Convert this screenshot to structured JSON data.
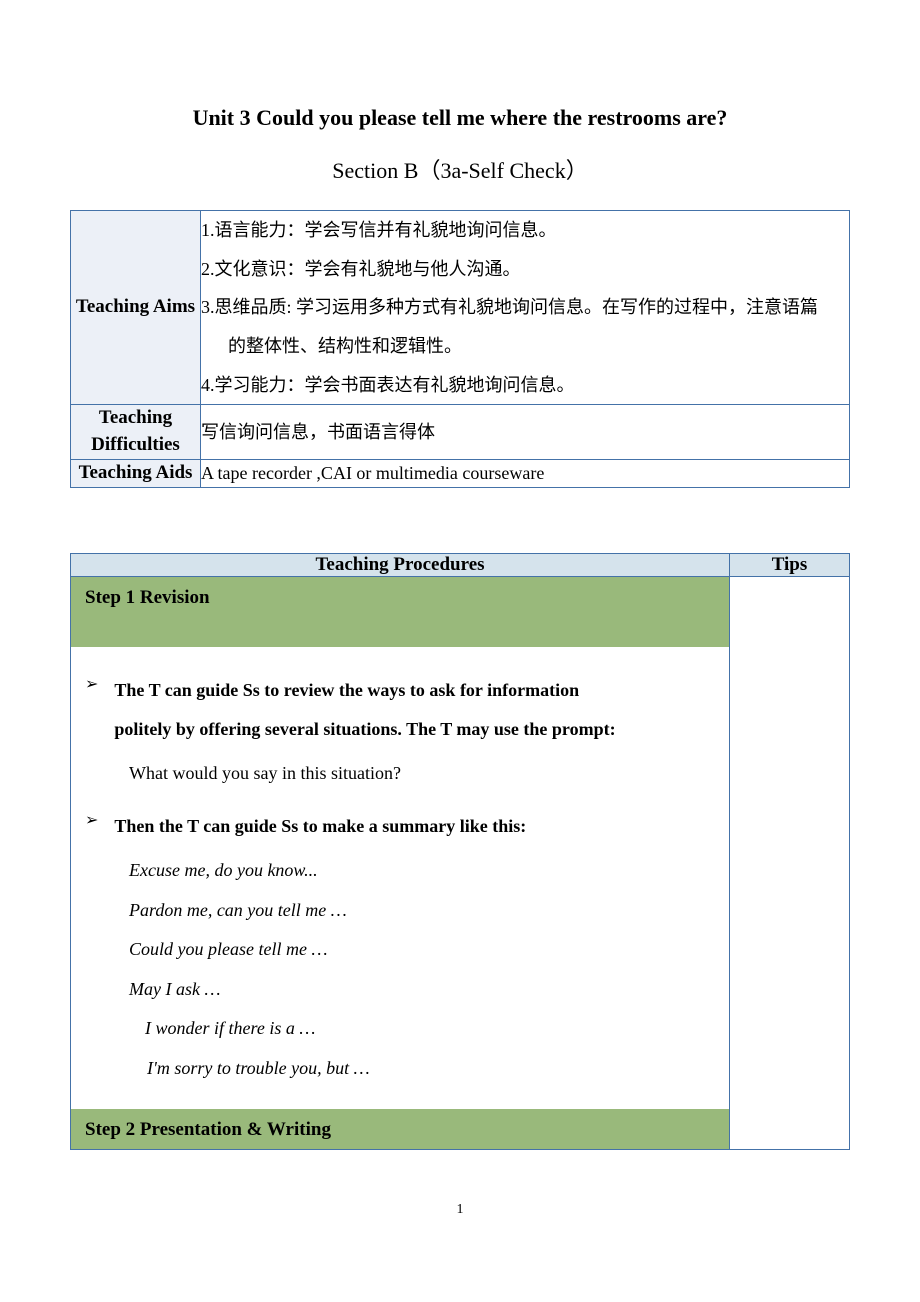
{
  "title1": "Unit 3 Could you please tell me where the restrooms are?",
  "title2": "Section B（3a-Self Check）",
  "table1": {
    "rows": [
      {
        "label": "Teaching Aims",
        "content_lines": [
          "1.语言能力：学会写信并有礼貌地询问信息。",
          "2.文化意识：学会有礼貌地与他人沟通。",
          "3.思维品质:  学习运用多种方式有礼貌地询问信息。在写作的过程中，注意语篇",
          "的整体性、结构性和逻辑性。",
          "4.学习能力：学会书面表达有礼貌地询问信息。"
        ],
        "indent_lines": [
          3
        ]
      },
      {
        "label": "Teaching Difficulties",
        "content": "写信询问信息，书面语言得体"
      },
      {
        "label": "Teaching Aids",
        "content": "A tape recorder ,CAI or multimedia courseware"
      }
    ]
  },
  "table2": {
    "headers": {
      "proc": "Teaching Procedures",
      "tips": "Tips"
    },
    "steps": [
      {
        "title": "Step 1 Revision",
        "items": [
          {
            "bold_lines": [
              "The T can guide Ss to review the ways to ask for information",
              "politely by offering several situations. The T may use the prompt:"
            ],
            "sub_plain": "What would you say in this situation?"
          },
          {
            "bold_lines": [
              "Then the T can guide Ss to make a summary like this:"
            ],
            "italics": [
              {
                "text": "Excuse me, do you know...",
                "cls": "sub-line italic"
              },
              {
                "text": "Pardon me, can you tell me …",
                "cls": "sub-line italic"
              },
              {
                "text": "Could you please tell me …",
                "cls": "sub-line italic"
              },
              {
                "text": "May I ask …",
                "cls": "sub-line italic"
              },
              {
                "text": "I wonder if there is a …",
                "cls": "sub-line italic indent-more"
              },
              {
                "text": "I'm sorry to trouble you, but …",
                "cls": "sub-line italic indent-more2"
              }
            ]
          }
        ]
      },
      {
        "title": "Step 2 Presentation & Writing",
        "items": []
      }
    ]
  },
  "page_number": "1",
  "colors": {
    "border": "#4472a8",
    "label_bg": "#ecf0f7",
    "header_bg": "#d5e3ec",
    "step_bg": "#99b97b"
  }
}
